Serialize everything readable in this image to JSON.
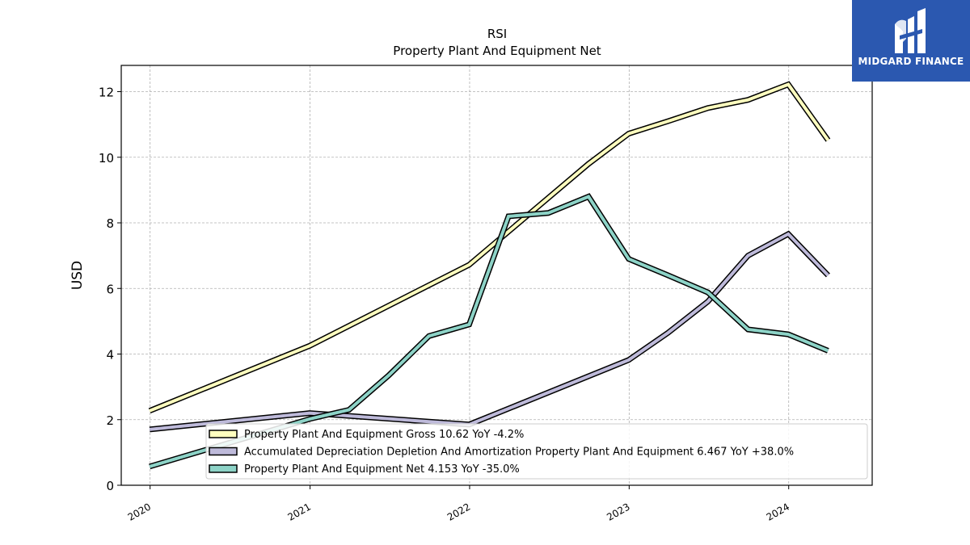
{
  "chart_data": {
    "type": "line",
    "title": "RSI",
    "subtitle": "Property Plant And Equipment Net",
    "xlabel": "",
    "ylabel": "USD",
    "xlim": [
      "2019-10-27",
      "2024-07-10"
    ],
    "ylim": [
      0,
      12.8
    ],
    "x_ticks": [
      "2020",
      "2021",
      "2022",
      "2023",
      "2024"
    ],
    "y_ticks": [
      0,
      2,
      4,
      6,
      8,
      10,
      12
    ],
    "grid": true,
    "legend_position": "lower-right",
    "series": [
      {
        "name": "Property Plant And Equipment Gross",
        "legend_label": "Property Plant And Equipment Gross  10.62 YoY -4.2%",
        "color": "#ffffbf",
        "points": [
          [
            "2019-12-31",
            2.27
          ],
          [
            "2020-12-31",
            4.25
          ],
          [
            "2021-12-31",
            6.72
          ],
          [
            "2022-09-30",
            9.8
          ],
          [
            "2022-12-31",
            10.72
          ],
          [
            "2023-03-31",
            11.1
          ],
          [
            "2023-06-30",
            11.5
          ],
          [
            "2023-09-30",
            11.75
          ],
          [
            "2023-12-31",
            12.22
          ],
          [
            "2024-03-31",
            10.52
          ]
        ]
      },
      {
        "name": "Accumulated Depreciation Depletion And Amortization Property Plant And Equipment",
        "legend_label": "Accumulated Depreciation Depletion And Amortization Property Plant And Equipment  6.467 YoY +38.0%",
        "color": "#bebada",
        "points": [
          [
            "2019-12-31",
            1.7
          ],
          [
            "2020-12-31",
            2.2
          ],
          [
            "2021-12-31",
            1.85
          ],
          [
            "2022-12-31",
            3.82
          ],
          [
            "2023-03-31",
            4.65
          ],
          [
            "2023-06-30",
            5.6
          ],
          [
            "2023-09-30",
            7.0
          ],
          [
            "2023-12-31",
            7.66
          ],
          [
            "2024-03-31",
            6.4
          ]
        ]
      },
      {
        "name": "Property Plant And Equipment Net",
        "legend_label": "Property Plant And Equipment Net  4.153 YoY -35.0%",
        "color": "#8dd3c7",
        "points": [
          [
            "2019-12-31",
            0.57
          ],
          [
            "2020-12-31",
            2.02
          ],
          [
            "2021-03-31",
            2.3
          ],
          [
            "2021-06-30",
            3.35
          ],
          [
            "2021-09-30",
            4.55
          ],
          [
            "2021-12-31",
            4.9
          ],
          [
            "2022-03-31",
            8.2
          ],
          [
            "2022-06-30",
            8.3
          ],
          [
            "2022-09-30",
            8.8
          ],
          [
            "2022-12-31",
            6.9
          ],
          [
            "2023-03-31",
            6.4
          ],
          [
            "2023-06-30",
            5.88
          ],
          [
            "2023-09-30",
            4.75
          ],
          [
            "2023-12-31",
            4.6
          ],
          [
            "2024-03-31",
            4.1
          ]
        ]
      }
    ]
  },
  "logo": {
    "text": "MIDGARD FINANCE",
    "color": "#2b58b0"
  }
}
